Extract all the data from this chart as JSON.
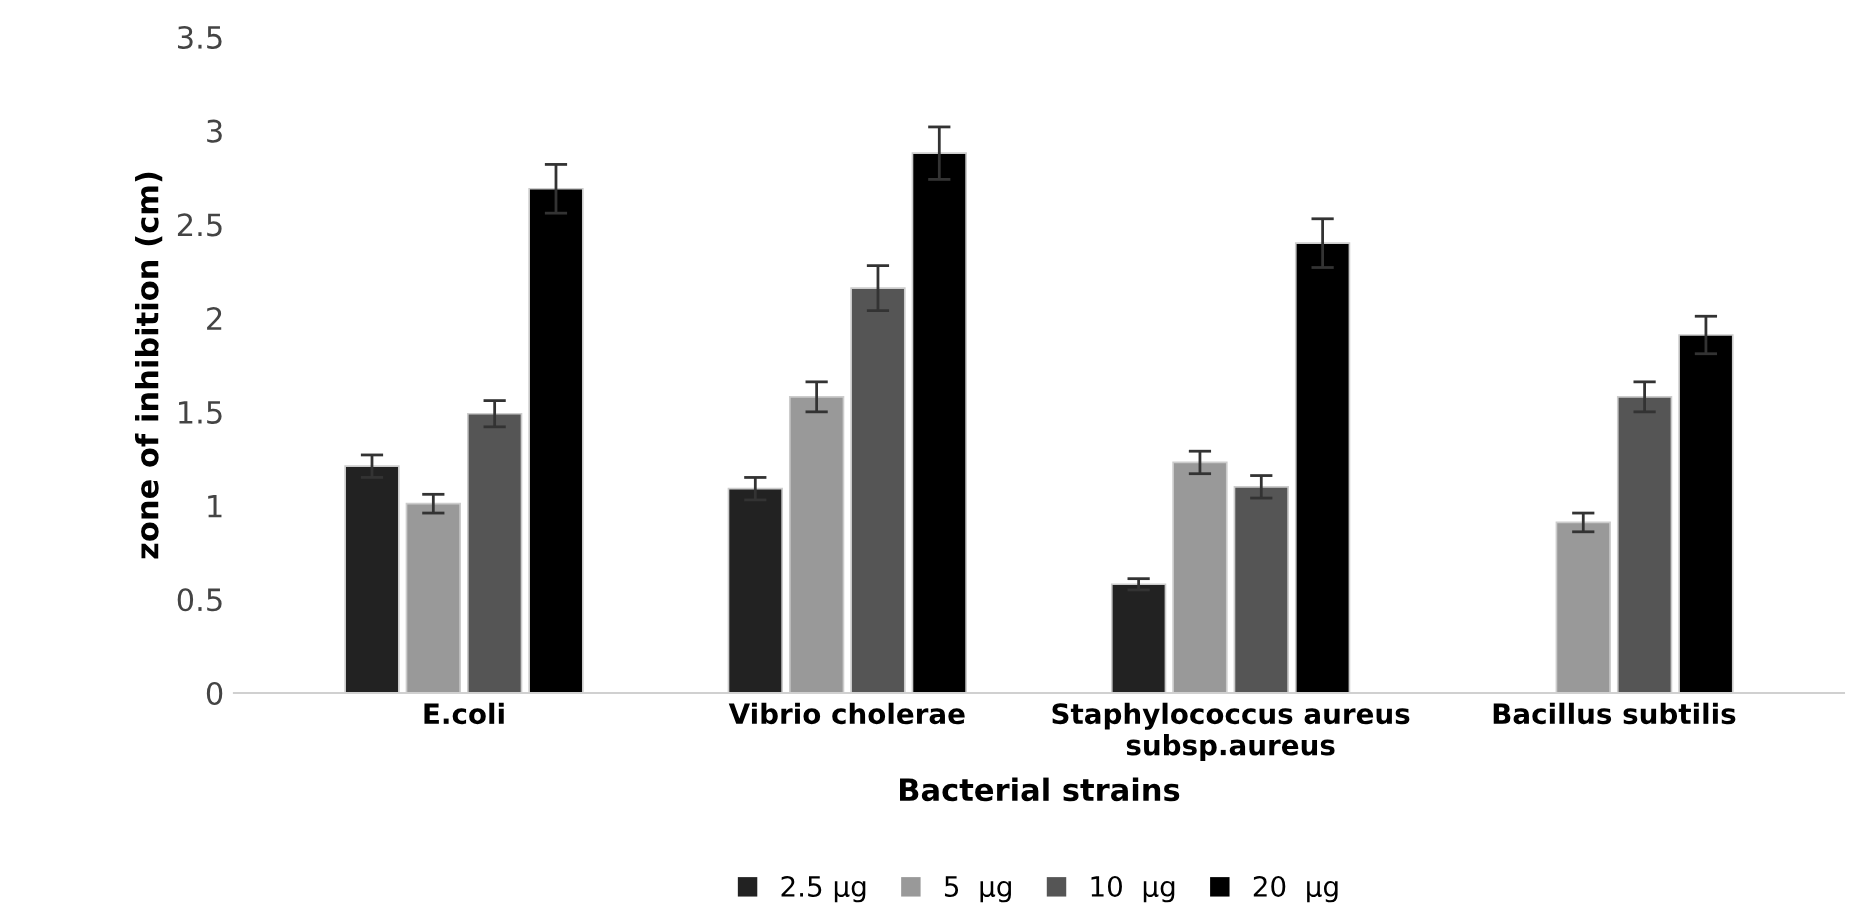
{
  "chart_data": {
    "type": "bar",
    "xlabel": "Bacterial strains",
    "ylabel": "zone of inhibition (cm)",
    "categories": [
      "E.coli",
      "Vibrio cholerae",
      "Staphylococcus aureus\nsubsp.aureus",
      "Bacillus subtilis"
    ],
    "series": [
      {
        "name": "2.5 μg",
        "color": "#222222",
        "values": [
          1.21,
          1.09,
          0.58,
          null
        ],
        "errors": [
          0.06,
          0.06,
          0.03,
          null
        ]
      },
      {
        "name": "5  μg",
        "color": "#999999",
        "values": [
          1.01,
          1.58,
          1.23,
          0.91
        ],
        "errors": [
          0.05,
          0.08,
          0.06,
          0.05
        ]
      },
      {
        "name": "10  μg",
        "color": "#555555",
        "values": [
          1.49,
          2.16,
          1.1,
          1.58
        ],
        "errors": [
          0.07,
          0.12,
          0.06,
          0.08
        ]
      },
      {
        "name": "20  μg",
        "color": "#000000",
        "values": [
          2.69,
          2.88,
          2.4,
          1.91
        ],
        "errors": [
          0.13,
          0.14,
          0.13,
          0.1
        ]
      }
    ],
    "ylim": [
      0,
      3.5
    ],
    "yticks": [
      0,
      0.5,
      1,
      1.5,
      2,
      2.5,
      3,
      3.5
    ],
    "grid": false,
    "legend": "bottom"
  }
}
